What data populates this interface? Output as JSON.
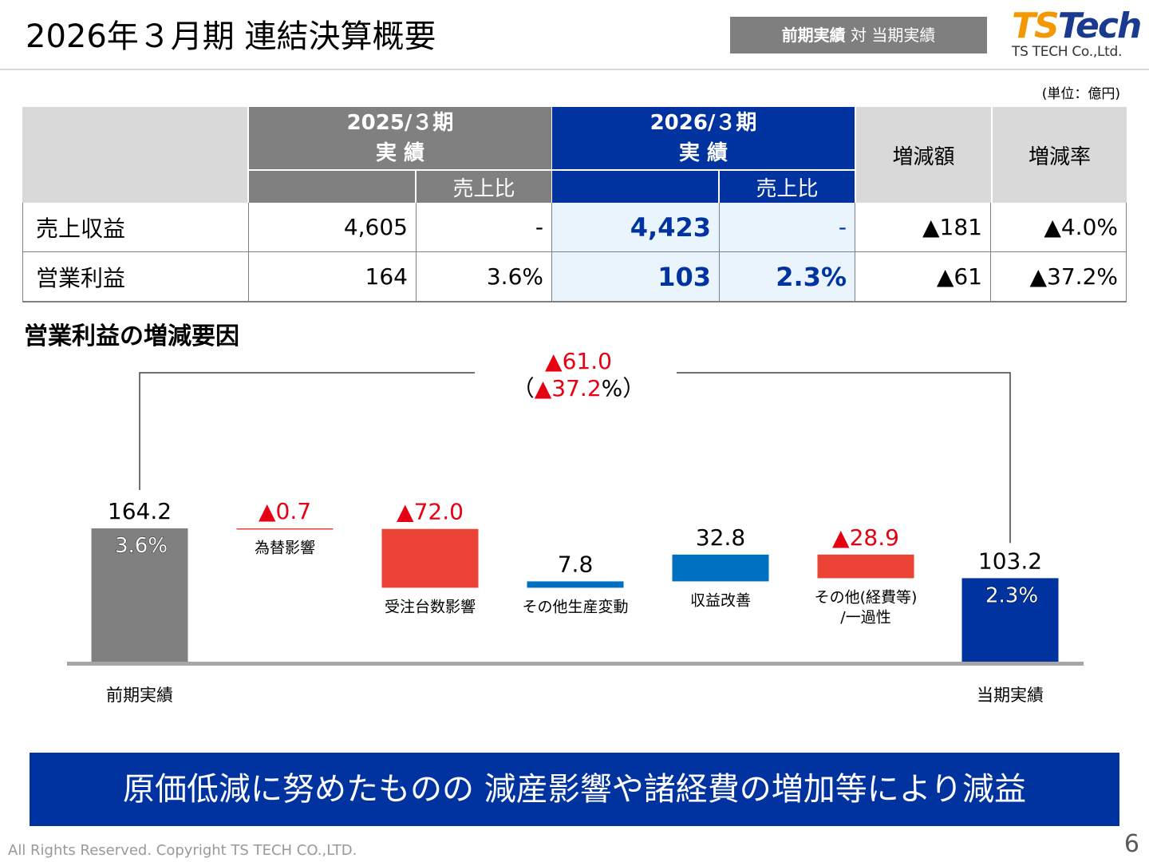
{
  "header": {
    "title": "2026年３月期 連結決算概要",
    "badge_bold": "前期実績",
    "badge_rest": " 対 当期実績",
    "logo_text_1": "TS",
    "logo_text_2": "Tech",
    "logo_company": "TS TECH Co.,Ltd."
  },
  "unit_note": "(単位：億円)",
  "table": {
    "col_prev_period": "2025/３期",
    "col_prev_actual": "実 績",
    "col_curr_period": "2026/３期",
    "col_curr_actual": "実 績",
    "col_sales_ratio": "売上比",
    "col_change_amount": "増減額",
    "col_change_rate": "増減率",
    "rows": [
      {
        "label": "売上収益",
        "prev": "4,605",
        "prev_ratio": "-",
        "curr": "4,423",
        "curr_ratio": "-",
        "change": "▲181",
        "rate": "▲4.0%"
      },
      {
        "label": "営業利益",
        "prev": "164",
        "prev_ratio": "3.6%",
        "curr": "103",
        "curr_ratio": "2.3%",
        "change": "▲61",
        "rate": "▲37.2%"
      }
    ]
  },
  "colors": {
    "prev_bar": "#808080",
    "curr_bar": "#0033a0",
    "negative": "#ea4335",
    "positive": "#0070c0",
    "negative_text": "#e60012"
  },
  "chart_data": {
    "type": "bar",
    "subtype": "waterfall",
    "title": "営業利益の増減要因",
    "total_change_label": "▲61.0",
    "total_rate_open": "（",
    "total_rate_label": "▲37.2",
    "total_rate_close": "%）",
    "steps": [
      {
        "category": "前期実績",
        "value": 164.2,
        "value_label": "164.2",
        "kind": "total",
        "margin": "3.6%"
      },
      {
        "category": "為替影響",
        "value": -0.7,
        "value_label": "▲0.7",
        "kind": "delta"
      },
      {
        "category": "受注台数影響",
        "value": -72.0,
        "value_label": "▲72.0",
        "kind": "delta"
      },
      {
        "category": "その他生産変動",
        "value": 7.8,
        "value_label": "7.8",
        "kind": "delta"
      },
      {
        "category": "収益改善",
        "value": 32.8,
        "value_label": "32.8",
        "kind": "delta"
      },
      {
        "category": "その他(経費等)",
        "category_line2": "/一過性",
        "value": -28.9,
        "value_label": "▲28.9",
        "kind": "delta"
      },
      {
        "category": "当期実績",
        "value": 103.2,
        "value_label": "103.2",
        "kind": "total",
        "margin": "2.3%"
      }
    ],
    "ylim": [
      0,
      164.2
    ]
  },
  "message": "原価低減に努めたものの 減産影響や諸経費の増加等により減益",
  "footer": {
    "copyright": "All Rights Reserved. Copyright TS TECH CO.,LTD.",
    "page": "6"
  }
}
